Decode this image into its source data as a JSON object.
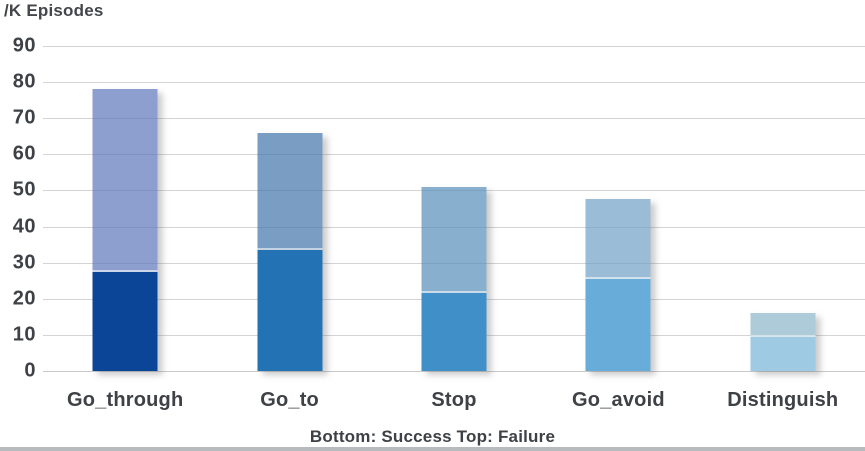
{
  "axis_title": "/K Episodes",
  "caption": "Bottom: Success  Top: Failure",
  "colors": {
    "success_by_category": [
      "#0b4598",
      "#2272b4",
      "#418fc8",
      "#68acd9",
      "#9ecae4"
    ],
    "failure_by_category": [
      "rgba(91,118,185,0.7)",
      "rgba(65,115,171,0.7)",
      "rgba(85,141,185,0.7)",
      "rgba(112,159,196,0.7)",
      "rgba(139,181,201,0.7)"
    ],
    "grid": "#d4d4d4",
    "text": "#3e4145"
  },
  "chart_data": {
    "type": "bar",
    "stacked": true,
    "title": "/K Episodes",
    "categories": [
      "Go_through",
      "Go_to",
      "Stop",
      "Go_avoid",
      "Distinguish"
    ],
    "series": [
      {
        "name": "Success",
        "position": "bottom",
        "values": [
          27.5,
          33.5,
          21.5,
          25.5,
          9.5
        ]
      },
      {
        "name": "Failure",
        "position": "top",
        "values": [
          50.5,
          32.5,
          29.5,
          22,
          6.5
        ]
      }
    ],
    "totals": [
      78,
      66,
      51,
      47.5,
      16
    ],
    "xlabel": "",
    "ylabel": "/K Episodes",
    "ylim": [
      0,
      90
    ],
    "yticks": [
      0,
      10,
      20,
      30,
      40,
      50,
      60,
      70,
      80,
      90
    ],
    "grid": "horizontal",
    "legend_position": "none",
    "annotation": "Bottom: Success  Top: Failure"
  }
}
